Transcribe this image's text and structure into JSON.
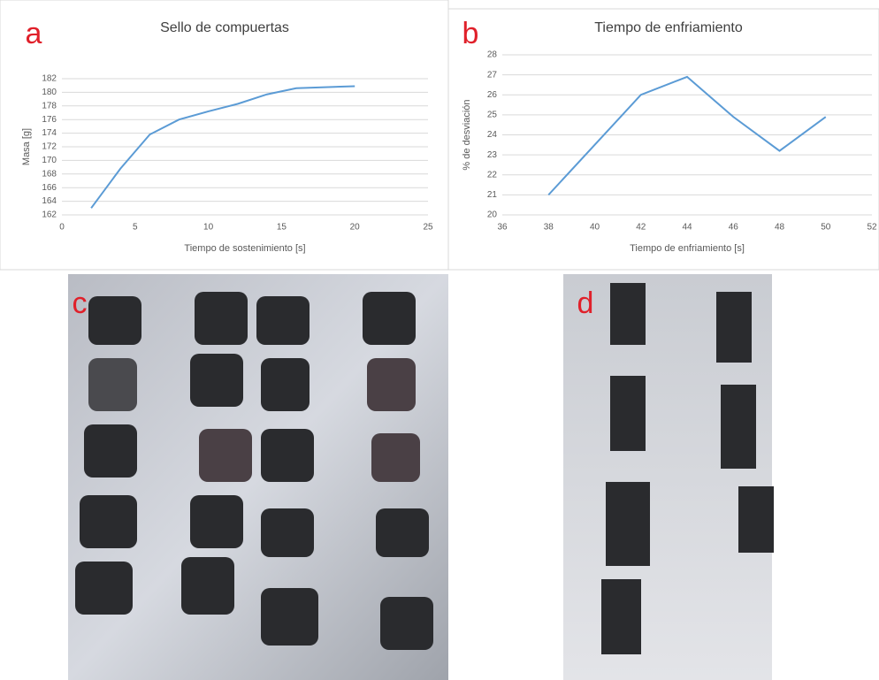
{
  "chart_data": [
    {
      "type": "line",
      "panel_label": "a",
      "title": "Sello de compuertas",
      "x_label": "Tiempo de sostenimiento [s]",
      "y_label": "Masa [g]",
      "x": [
        2,
        4,
        6,
        8,
        10,
        12,
        14,
        16,
        20
      ],
      "values": [
        163,
        168.8,
        173.8,
        176,
        177.2,
        178.3,
        179.7,
        180.6,
        180.9
      ],
      "color": "#5b9bd5",
      "xlim": [
        0,
        25
      ],
      "xticks": [
        0,
        5,
        10,
        15,
        20,
        25
      ],
      "ylim": [
        162,
        182
      ],
      "yticks": [
        162,
        164,
        166,
        168,
        170,
        172,
        174,
        176,
        178,
        180,
        182
      ],
      "grid": true
    },
    {
      "type": "line",
      "panel_label": "b",
      "title": "Tiempo de enfriamiento",
      "x_label": "Tiempo de enfriamiento [s]",
      "y_label": "% de desviación",
      "x": [
        38,
        40,
        42,
        44,
        46,
        48,
        50
      ],
      "values": [
        21,
        23.5,
        26,
        26.9,
        24.9,
        23.2,
        24.9
      ],
      "color": "#5b9bd5",
      "xlim": [
        36,
        52
      ],
      "xticks": [
        36,
        38,
        40,
        42,
        44,
        46,
        48,
        50,
        52
      ],
      "ylim": [
        20,
        28
      ],
      "yticks": [
        20,
        21,
        22,
        23,
        24,
        25,
        26,
        27,
        28
      ],
      "grid": true
    }
  ],
  "photos": [
    {
      "panel_label": "c"
    },
    {
      "panel_label": "d"
    }
  ]
}
